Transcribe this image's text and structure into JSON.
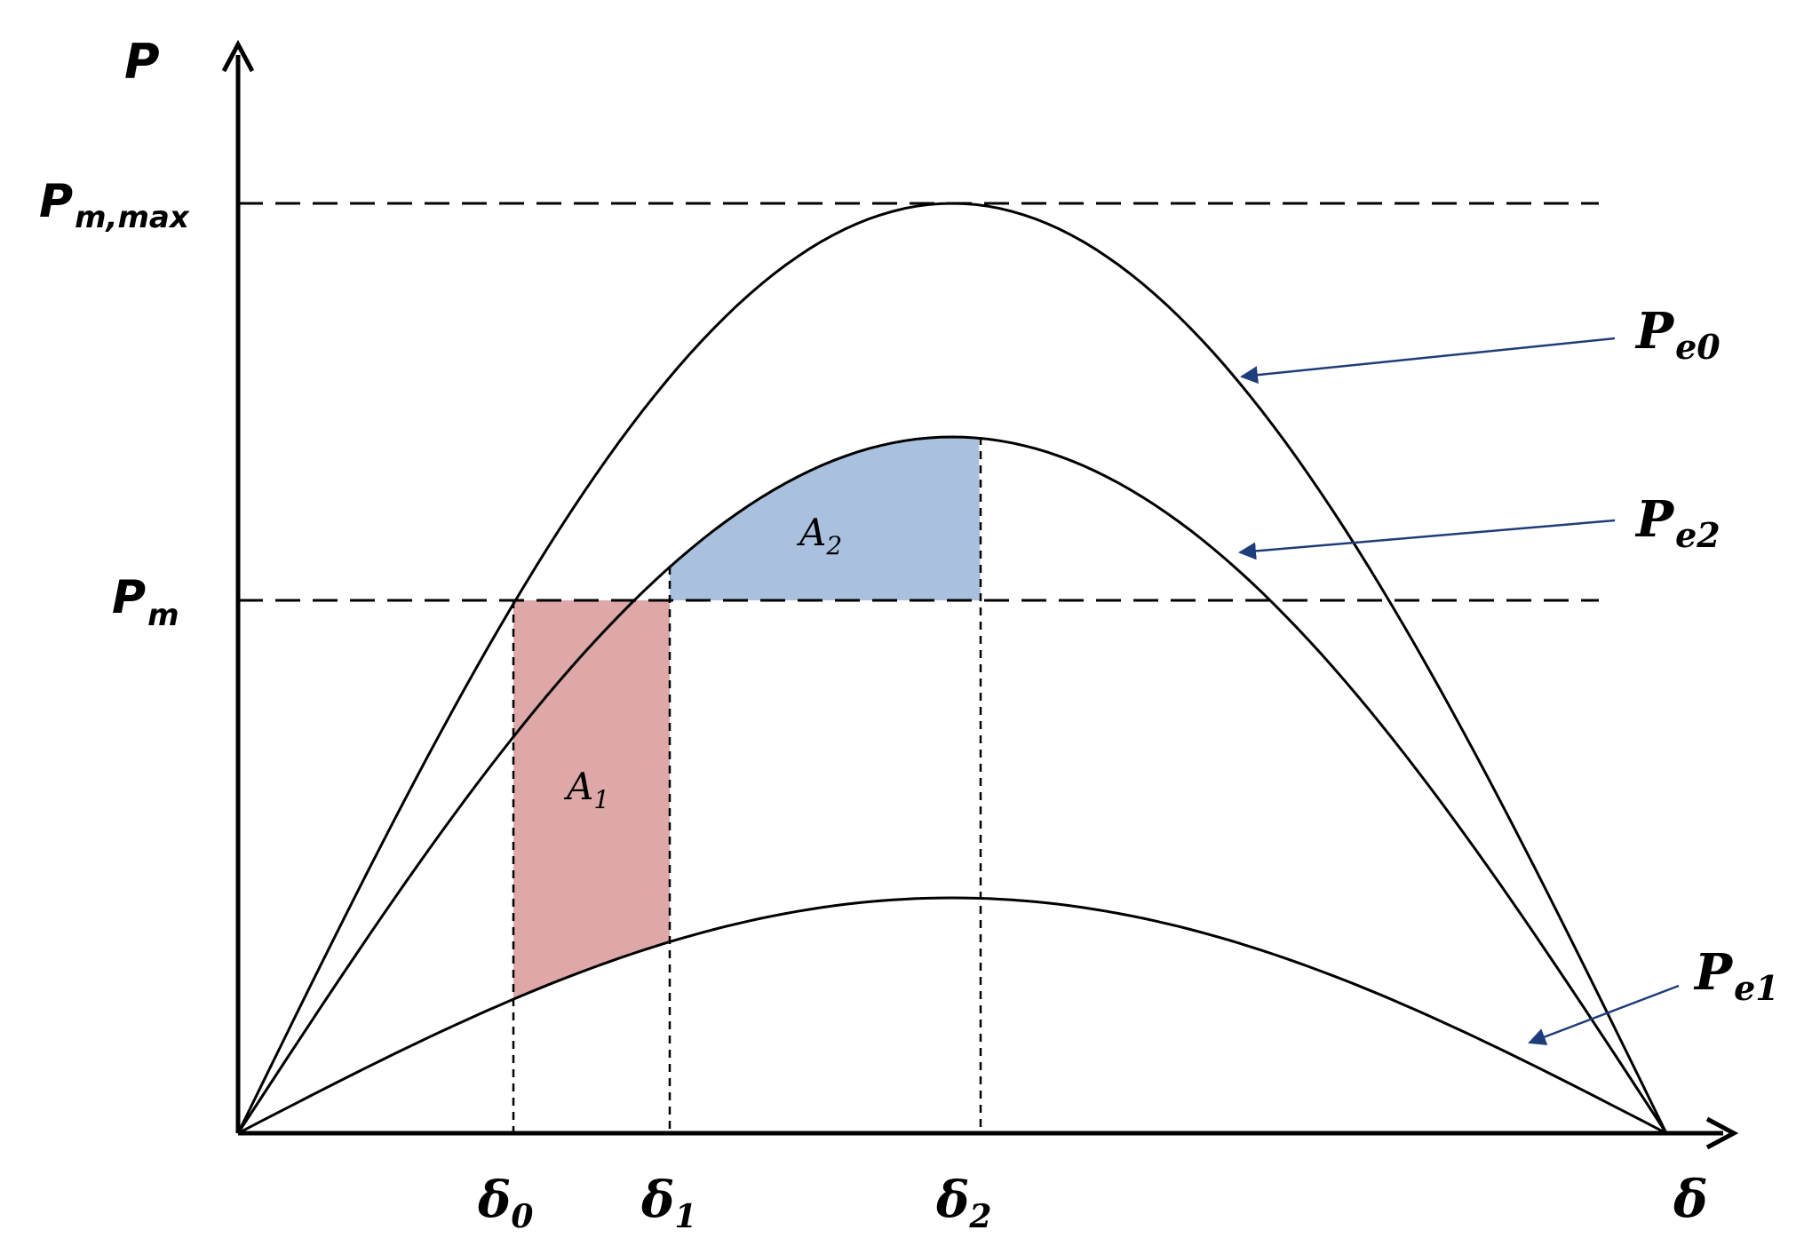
{
  "axes": {
    "y_label": "P",
    "x_label": "δ"
  },
  "levels": {
    "pm_max": {
      "main": "P",
      "sub": "m,max"
    },
    "pm": {
      "main": "P",
      "sub": "m"
    }
  },
  "angles": [
    {
      "main": "δ",
      "sub": "0"
    },
    {
      "main": "δ",
      "sub": "1"
    },
    {
      "main": "δ",
      "sub": "2"
    }
  ],
  "curves": [
    {
      "main": "P",
      "sub": "e0"
    },
    {
      "main": "P",
      "sub": "e2"
    },
    {
      "main": "P",
      "sub": "e1"
    }
  ],
  "areas": [
    {
      "main": "A",
      "sub": "1",
      "color": "#dea8a8"
    },
    {
      "main": "A",
      "sub": "2",
      "color": "#a9c1df"
    }
  ],
  "colors": {
    "line": "#000000",
    "arrow": "#1f3d7a"
  }
}
